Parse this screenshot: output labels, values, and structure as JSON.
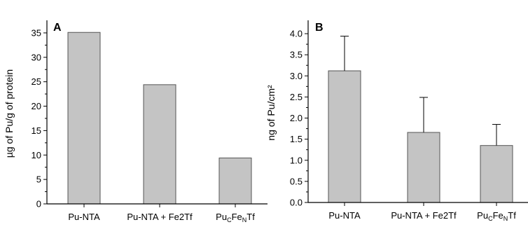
{
  "colors": {
    "bar_fill": "#c4c4c4",
    "bar_stroke": "#555555",
    "axis": "#000000"
  },
  "chart_data": [
    {
      "type": "bar",
      "panel_label": "A",
      "title": "",
      "xlabel": "",
      "ylabel": "µg of Pu/g of protein",
      "categories": [
        "Pu-NTA",
        "Pu-NTA + Fe2Tf",
        "Pu_CFe_NTf"
      ],
      "values": [
        35.1,
        24.4,
        9.4
      ],
      "ylim": [
        0,
        37
      ],
      "yticks": [
        0,
        5,
        10,
        15,
        20,
        25,
        30,
        35
      ],
      "ytick_labels": [
        "0",
        "5",
        "10",
        "15",
        "20",
        "25",
        "30",
        "35"
      ],
      "grid": false
    },
    {
      "type": "bar",
      "panel_label": "B",
      "title": "",
      "xlabel": "",
      "ylabel": "ng of Pu/cm²",
      "categories": [
        "Pu-NTA",
        "Pu-NTA + Fe2Tf",
        "Pu_CFe_NTf"
      ],
      "values": [
        3.12,
        1.66,
        1.35
      ],
      "error": [
        0.82,
        0.83,
        0.5
      ],
      "ylim": [
        0,
        4.25
      ],
      "yticks": [
        0,
        0.5,
        1.0,
        1.5,
        2.0,
        2.5,
        3.0,
        3.5,
        4.0
      ],
      "ytick_labels": [
        "0.0",
        "0.5",
        "1.0",
        "1.5",
        "2.0",
        "2.5",
        "3.0",
        "3.5",
        "4.0"
      ],
      "grid": false
    }
  ]
}
